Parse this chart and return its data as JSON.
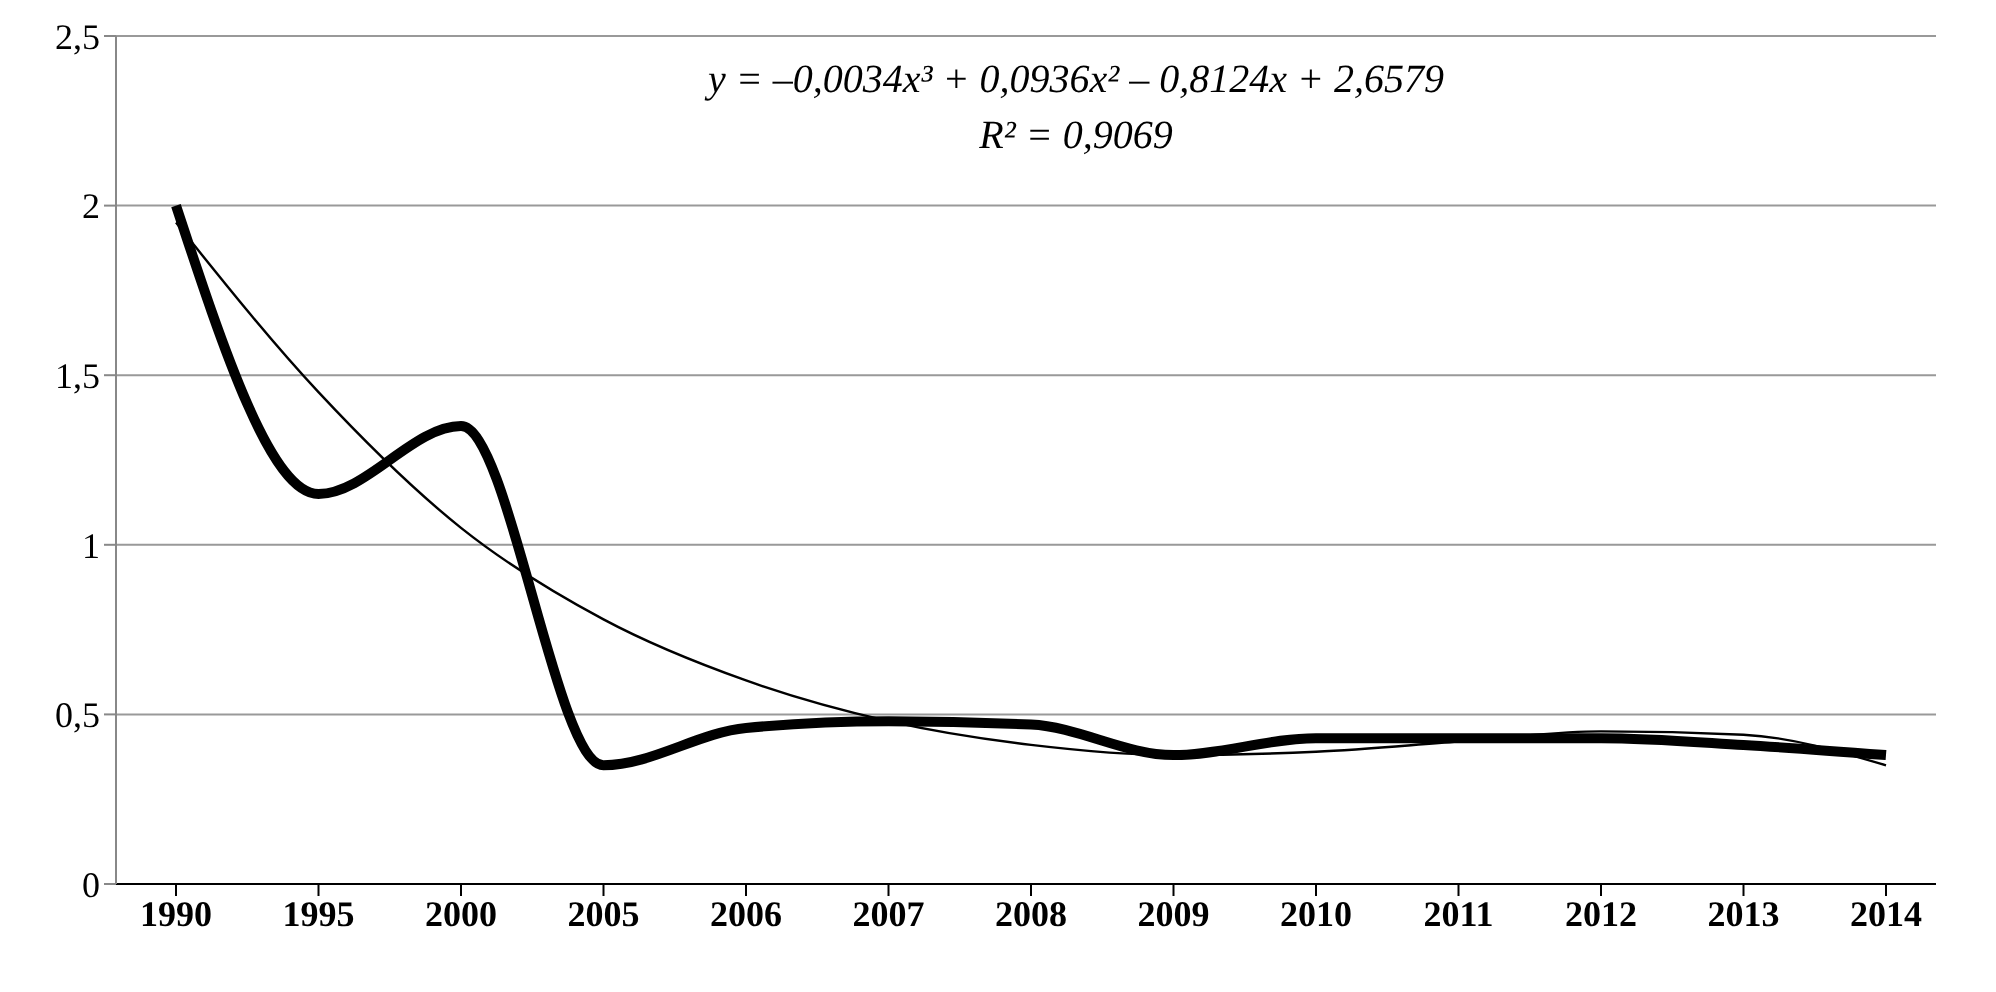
{
  "chart_data": {
    "type": "line",
    "categories": [
      "1990",
      "1995",
      "2000",
      "2005",
      "2006",
      "2007",
      "2008",
      "2009",
      "2010",
      "2011",
      "2012",
      "2013",
      "2014"
    ],
    "series": [
      {
        "color": "#000000",
        "values": [
          2.0,
          1.15,
          1.35,
          0.35,
          0.46,
          0.48,
          0.47,
          0.38,
          0.43,
          0.43,
          0.43,
          0.41,
          0.38
        ]
      },
      {
        "type": "line",
        "color": "#000000",
        "values": [
          1.95,
          1.45,
          1.05,
          0.78,
          0.6,
          0.48,
          0.41,
          0.38,
          0.39,
          0.42,
          0.45,
          0.44,
          0.35
        ]
      }
    ],
    "ylim": [
      0,
      2.5
    ],
    "yticks": [
      {
        "value": 0,
        "label": "0"
      },
      {
        "value": 0.5,
        "label": "0,5"
      },
      {
        "value": 1,
        "label": "1"
      },
      {
        "value": 1.5,
        "label": "1,5"
      },
      {
        "value": 2,
        "label": "2"
      },
      {
        "value": 2.5,
        "label": "2,5"
      }
    ],
    "grid": "y",
    "marker": "none",
    "line_style": "solid",
    "annotations": [
      "y = –0,0034x³ + 0,0936x² – 0,8124x + 2,6579",
      "R² = 0,9069"
    ]
  }
}
